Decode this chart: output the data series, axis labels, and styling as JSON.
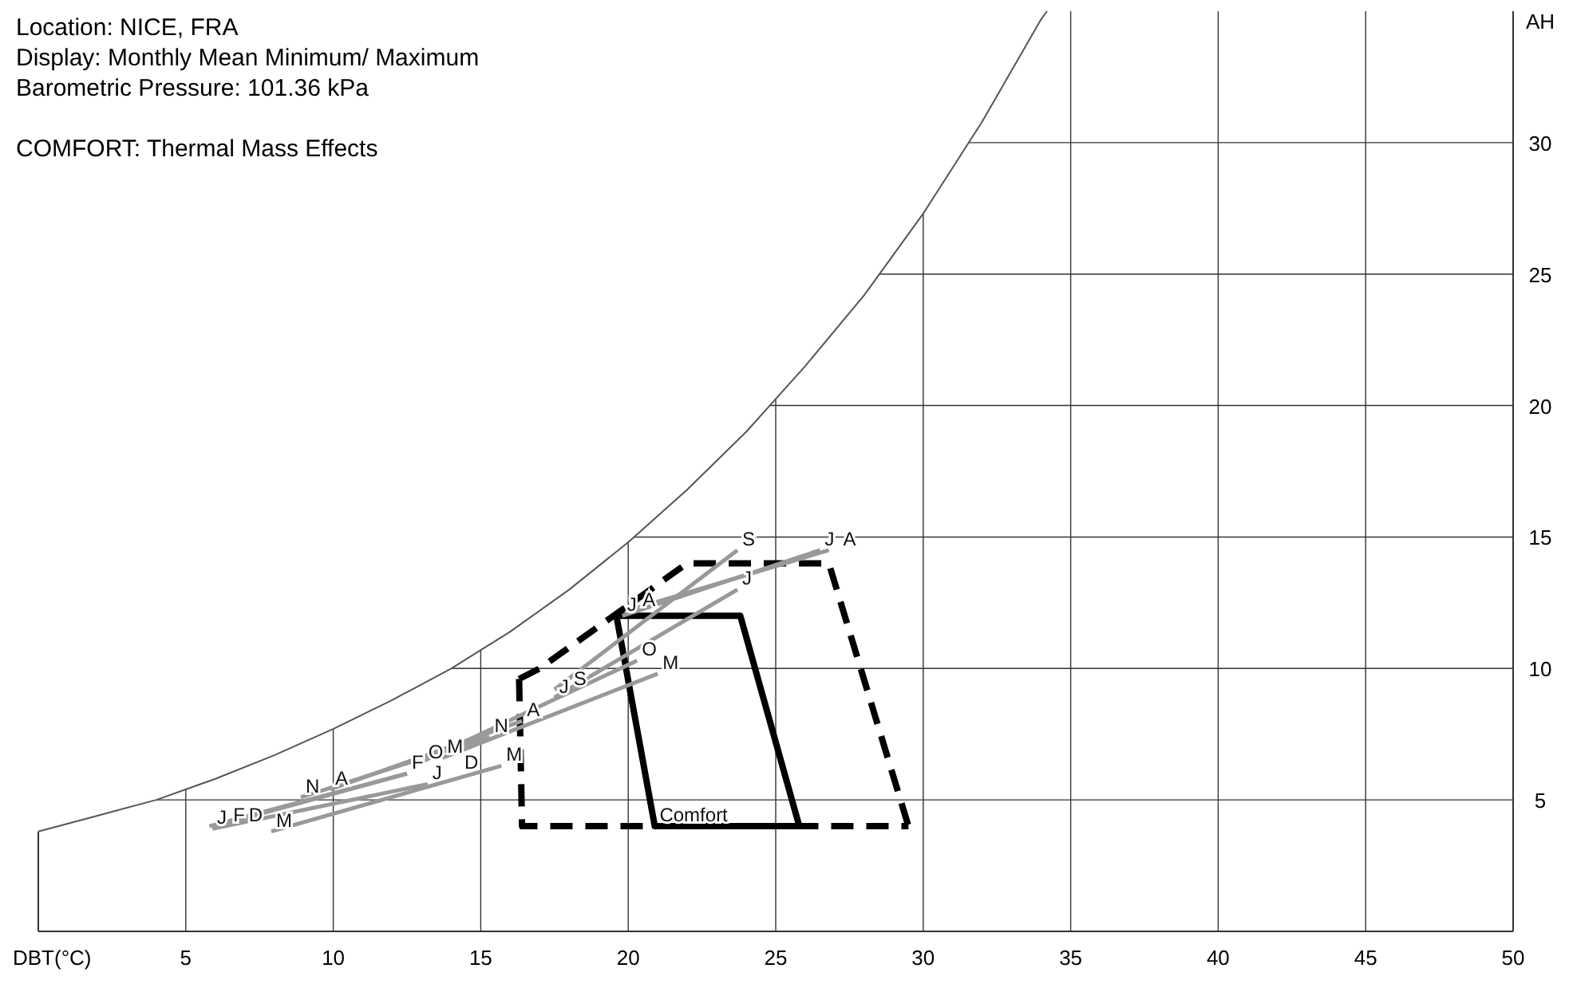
{
  "chart_data": {
    "type": "line",
    "title": "Location: NICE, FRA",
    "subtitle": "Display: Monthly Mean Minimum/ Maximum",
    "annotations": [
      "Barometric Pressure: 101.36 kPa",
      "COMFORT: Thermal Mass Effects"
    ],
    "xlabel": "DBT(°C)",
    "ylabel": "AH",
    "xlim": [
      0,
      50
    ],
    "ylim": [
      0,
      35
    ],
    "xticks": [
      5,
      10,
      15,
      20,
      25,
      30,
      35,
      40,
      45,
      50
    ],
    "yticks": [
      5,
      10,
      15,
      20,
      25,
      30
    ],
    "grid": true,
    "legend": false,
    "series": [
      {
        "color": "#555555",
        "x": [
          0,
          2,
          4,
          6,
          8,
          10,
          12,
          14,
          16,
          18,
          20,
          22,
          24,
          26,
          28,
          30,
          32,
          34,
          34.2
        ],
        "values": [
          3.8,
          4.4,
          5.0,
          5.8,
          6.7,
          7.7,
          8.8,
          10.0,
          11.4,
          13.0,
          14.8,
          16.8,
          19.0,
          21.5,
          24.2,
          27.3,
          30.8,
          34.7,
          35
        ]
      },
      {
        "name": "Comfort",
        "color": "#000000",
        "x": [
          19.6,
          20.9,
          25.8
        ],
        "values": [
          12,
          4,
          4
        ]
      },
      {
        "color": "#000000",
        "x": [
          19.6,
          23.8,
          25.8
        ],
        "values": [
          12,
          12,
          4
        ]
      },
      {
        "color": "#000000",
        "line_style": "dashed",
        "x": [
          16.3,
          16.4,
          29.5
        ],
        "values": [
          9.6,
          4,
          4
        ]
      },
      {
        "color": "#000000",
        "line_style": "dashed",
        "x": [
          16.3,
          17,
          22,
          26.8,
          29.5
        ],
        "values": [
          9.6,
          10,
          14,
          14,
          4
        ]
      },
      {
        "name": "J",
        "color": "#999999",
        "x": [
          5.9,
          13.2
        ],
        "values": [
          3.9,
          5.6
        ]
      },
      {
        "name": "F",
        "color": "#999999",
        "x": [
          5.8,
          12.5
        ],
        "values": [
          4.0,
          6.0
        ]
      },
      {
        "name": "M",
        "color": "#999999",
        "x": [
          7.9,
          15.7
        ],
        "values": [
          3.8,
          6.3
        ]
      },
      {
        "name": "A",
        "color": "#999999",
        "x": [
          9.9,
          16.4
        ],
        "values": [
          5.4,
          8.0
        ]
      },
      {
        "name": "M",
        "color": "#999999",
        "x": [
          13.7,
          21.0
        ],
        "values": [
          6.6,
          9.8
        ]
      },
      {
        "name": "J",
        "color": "#999999",
        "x": [
          17.5,
          23.7
        ],
        "values": [
          8.9,
          13.0
        ]
      },
      {
        "name": "J",
        "color": "#999999",
        "x": [
          19.8,
          26.5
        ],
        "values": [
          12.0,
          14.5
        ]
      },
      {
        "name": "A",
        "color": "#999999",
        "x": [
          20.0,
          26.8
        ],
        "values": [
          12.2,
          14.5
        ]
      },
      {
        "name": "S",
        "color": "#999999",
        "x": [
          17.5,
          23.7
        ],
        "values": [
          9.2,
          14.5
        ]
      },
      {
        "name": "O",
        "color": "#999999",
        "x": [
          12.9,
          20.3
        ],
        "values": [
          6.4,
          10.3
        ]
      },
      {
        "name": "N",
        "color": "#999999",
        "x": [
          8.9,
          15.3
        ],
        "values": [
          5.1,
          7.4
        ]
      },
      {
        "name": "D",
        "color": "#999999",
        "x": [
          6.0,
          12.5
        ],
        "values": [
          4.0,
          6.0
        ]
      }
    ]
  }
}
